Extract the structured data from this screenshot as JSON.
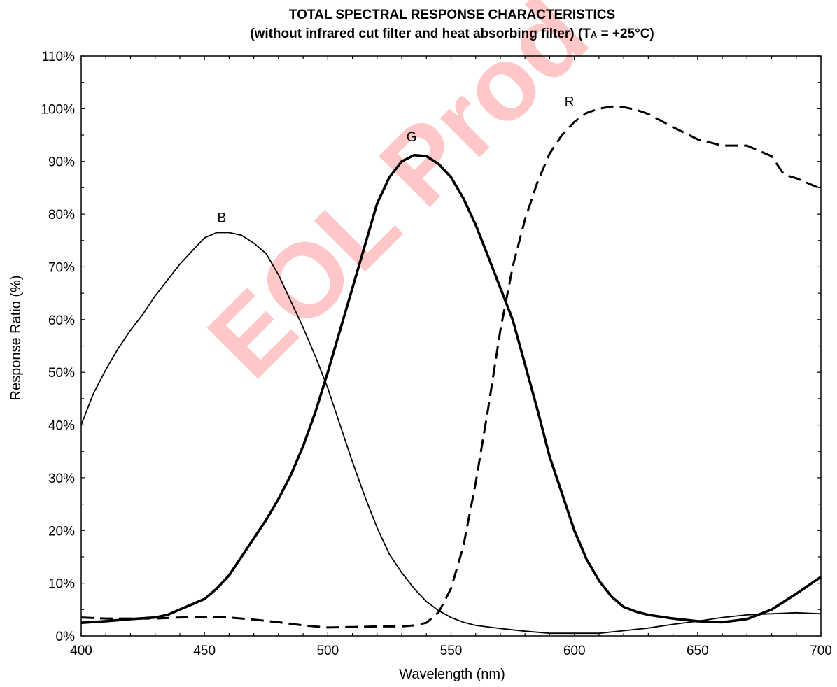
{
  "chart_data": {
    "type": "line",
    "title": "TOTAL SPECTRAL RESPONSE CHARACTERISTICS",
    "subtitle_main": "(without infrared cut filter and heat absorbing filter) (T",
    "subtitle_sub": "A",
    "subtitle_end": " = +25°C)",
    "xlabel": "Wavelength (nm)",
    "ylabel": "Response Ratio (%)",
    "xlim": [
      400,
      700
    ],
    "ylim": [
      0,
      110
    ],
    "x_ticks": [
      400,
      450,
      500,
      550,
      600,
      650,
      700
    ],
    "y_ticks": [
      0,
      10,
      20,
      30,
      40,
      50,
      60,
      70,
      80,
      90,
      100,
      110
    ],
    "y_tick_labels": [
      "0%",
      "10%",
      "20%",
      "30%",
      "40%",
      "50%",
      "60%",
      "70%",
      "80%",
      "90%",
      "100%",
      "110%"
    ],
    "grid": false,
    "watermark": "EOL Prod",
    "series": [
      {
        "name": "B",
        "style": "thin",
        "x": [
          400,
          405,
          410,
          415,
          420,
          425,
          430,
          435,
          440,
          445,
          450,
          455,
          460,
          465,
          470,
          475,
          480,
          485,
          490,
          495,
          500,
          505,
          510,
          515,
          520,
          525,
          530,
          535,
          540,
          545,
          550,
          555,
          560,
          570,
          580,
          590,
          600,
          610,
          620,
          630,
          640,
          650,
          660,
          670,
          680,
          690,
          700
        ],
        "y": [
          40,
          46,
          50.5,
          54.5,
          58,
          61,
          64.5,
          67.5,
          70.5,
          73,
          75.5,
          76.5,
          76.5,
          76,
          74.5,
          72.5,
          68.5,
          63.5,
          58.5,
          53,
          47,
          40,
          33,
          26.5,
          20.5,
          15.5,
          12,
          9,
          6.5,
          4.8,
          3.5,
          2.6,
          2,
          1.4,
          0.9,
          0.5,
          0.5,
          0.5,
          1,
          1.5,
          2.2,
          2.8,
          3.5,
          4,
          4.2,
          4.4,
          4.2
        ]
      },
      {
        "name": "G",
        "style": "thick",
        "x": [
          400,
          410,
          420,
          430,
          435,
          440,
          445,
          450,
          455,
          460,
          465,
          470,
          475,
          480,
          485,
          490,
          495,
          500,
          505,
          510,
          515,
          520,
          525,
          530,
          535,
          540,
          545,
          550,
          555,
          560,
          565,
          570,
          575,
          580,
          585,
          590,
          595,
          600,
          605,
          610,
          615,
          620,
          625,
          630,
          640,
          650,
          660,
          670,
          680,
          690,
          700
        ],
        "y": [
          2.5,
          2.8,
          3.2,
          3.5,
          4,
          5,
          6,
          7,
          9,
          11.5,
          15,
          18.5,
          22,
          26,
          30.5,
          36,
          42.5,
          50,
          58,
          66,
          74,
          82,
          87,
          90,
          91.2,
          91,
          89.5,
          87,
          83,
          78,
          72,
          66,
          60,
          51.5,
          43,
          34,
          27,
          20,
          14.5,
          10.5,
          7.5,
          5.5,
          4.6,
          4,
          3.3,
          2.8,
          2.6,
          3.2,
          5,
          8,
          11.2
        ]
      },
      {
        "name": "R",
        "style": "dashed",
        "x": [
          400,
          410,
          420,
          430,
          440,
          450,
          460,
          470,
          480,
          490,
          500,
          510,
          520,
          530,
          535,
          540,
          545,
          550,
          555,
          560,
          565,
          570,
          575,
          580,
          585,
          590,
          595,
          600,
          605,
          610,
          615,
          620,
          625,
          630,
          640,
          650,
          660,
          670,
          680,
          685,
          690,
          700
        ],
        "y": [
          3.5,
          3.3,
          3.3,
          3.3,
          3.5,
          3.6,
          3.5,
          3.1,
          2.6,
          2.0,
          1.6,
          1.7,
          1.8,
          1.8,
          2.0,
          2.5,
          4.5,
          9,
          17,
          29,
          43,
          58,
          70,
          79,
          86,
          91.5,
          95,
          97.5,
          99.2,
          100,
          100.4,
          100.3,
          99.8,
          99,
          96.5,
          94.2,
          93,
          93,
          91,
          87.5,
          86.8,
          84.8
        ]
      }
    ],
    "curve_labels": [
      {
        "text": "B",
        "x": 457,
        "y": 78.5
      },
      {
        "text": "G",
        "x": 534,
        "y": 93.8
      },
      {
        "text": "R",
        "x": 598,
        "y": 100.5
      }
    ]
  }
}
